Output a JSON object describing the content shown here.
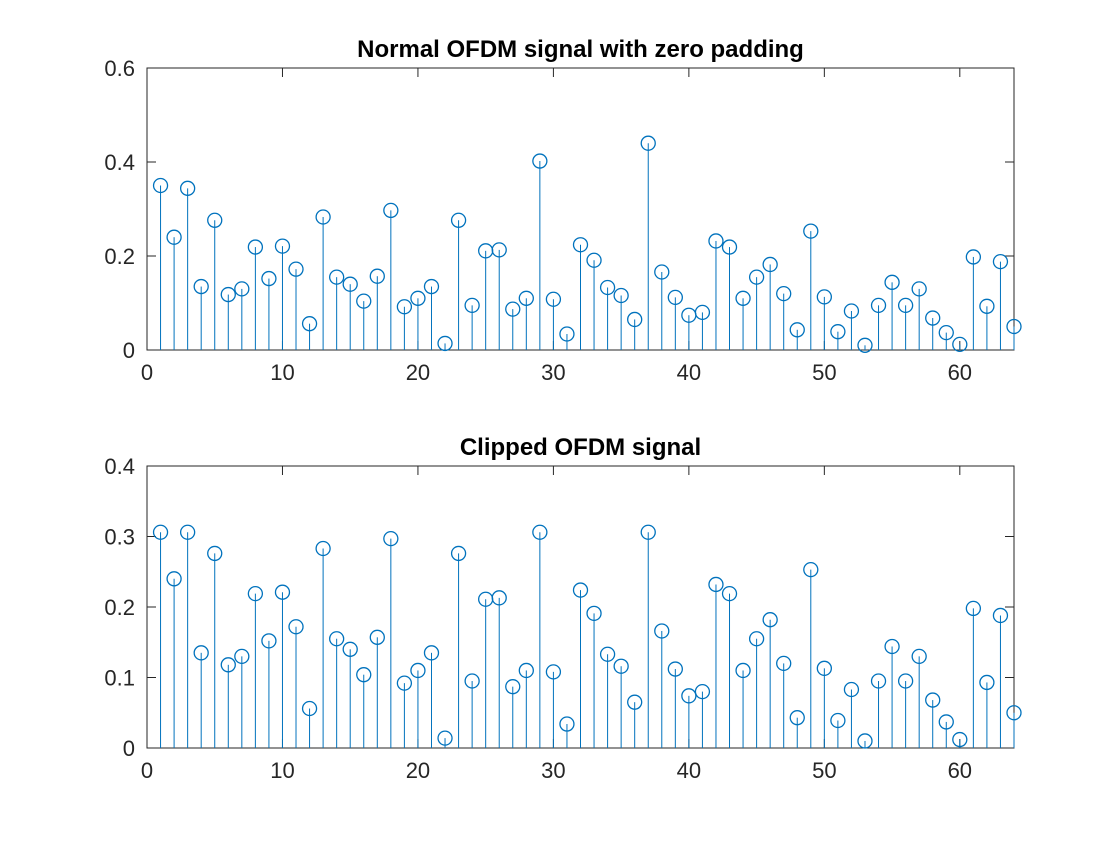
{
  "chart_data": [
    {
      "type": "stem",
      "title": "Normal OFDM signal with zero padding",
      "xlabel": "",
      "ylabel": "",
      "xlim": [
        0,
        64
      ],
      "ylim": [
        0,
        0.6
      ],
      "xticks": [
        "0",
        "10",
        "20",
        "30",
        "40",
        "50",
        "60"
      ],
      "yticks": [
        "0",
        "0.2",
        "0.4",
        "0.6"
      ],
      "grid": false,
      "color": "#0072BD",
      "x": [
        1,
        2,
        3,
        4,
        5,
        6,
        7,
        8,
        9,
        10,
        11,
        12,
        13,
        14,
        15,
        16,
        17,
        18,
        19,
        20,
        21,
        22,
        23,
        24,
        25,
        26,
        27,
        28,
        29,
        30,
        31,
        32,
        33,
        34,
        35,
        36,
        37,
        38,
        39,
        40,
        41,
        42,
        43,
        44,
        45,
        46,
        47,
        48,
        49,
        50,
        51,
        52,
        53,
        54,
        55,
        56,
        57,
        58,
        59,
        60,
        61,
        62,
        63,
        64
      ],
      "values": [
        0.35,
        0.24,
        0.344,
        0.135,
        0.276,
        0.118,
        0.13,
        0.219,
        0.152,
        0.221,
        0.172,
        0.056,
        0.283,
        0.155,
        0.14,
        0.104,
        0.157,
        0.297,
        0.092,
        0.11,
        0.135,
        0.014,
        0.276,
        0.095,
        0.211,
        0.213,
        0.087,
        0.11,
        0.402,
        0.108,
        0.034,
        0.224,
        0.191,
        0.133,
        0.116,
        0.065,
        0.44,
        0.166,
        0.112,
        0.074,
        0.08,
        0.232,
        0.219,
        0.11,
        0.155,
        0.182,
        0.12,
        0.043,
        0.253,
        0.113,
        0.039,
        0.083,
        0.01,
        0.095,
        0.144,
        0.095,
        0.13,
        0.068,
        0.037,
        0.012,
        0.198,
        0.093,
        0.188,
        0.05
      ]
    },
    {
      "type": "stem",
      "title": "Clipped OFDM signal",
      "xlabel": "",
      "ylabel": "",
      "xlim": [
        0,
        64
      ],
      "ylim": [
        0,
        0.4
      ],
      "xticks": [
        "0",
        "10",
        "20",
        "30",
        "40",
        "50",
        "60"
      ],
      "yticks": [
        "0",
        "0.1",
        "0.2",
        "0.3",
        "0.4"
      ],
      "grid": false,
      "color": "#0072BD",
      "x": [
        1,
        2,
        3,
        4,
        5,
        6,
        7,
        8,
        9,
        10,
        11,
        12,
        13,
        14,
        15,
        16,
        17,
        18,
        19,
        20,
        21,
        22,
        23,
        24,
        25,
        26,
        27,
        28,
        29,
        30,
        31,
        32,
        33,
        34,
        35,
        36,
        37,
        38,
        39,
        40,
        41,
        42,
        43,
        44,
        45,
        46,
        47,
        48,
        49,
        50,
        51,
        52,
        53,
        54,
        55,
        56,
        57,
        58,
        59,
        60,
        61,
        62,
        63,
        64
      ],
      "values": [
        0.306,
        0.24,
        0.306,
        0.135,
        0.276,
        0.118,
        0.13,
        0.219,
        0.152,
        0.221,
        0.172,
        0.056,
        0.283,
        0.155,
        0.14,
        0.104,
        0.157,
        0.297,
        0.092,
        0.11,
        0.135,
        0.014,
        0.276,
        0.095,
        0.211,
        0.213,
        0.087,
        0.11,
        0.306,
        0.108,
        0.034,
        0.224,
        0.191,
        0.133,
        0.116,
        0.065,
        0.306,
        0.166,
        0.112,
        0.074,
        0.08,
        0.232,
        0.219,
        0.11,
        0.155,
        0.182,
        0.12,
        0.043,
        0.253,
        0.113,
        0.039,
        0.083,
        0.01,
        0.095,
        0.144,
        0.095,
        0.13,
        0.068,
        0.037,
        0.012,
        0.198,
        0.093,
        0.188,
        0.05
      ]
    }
  ]
}
